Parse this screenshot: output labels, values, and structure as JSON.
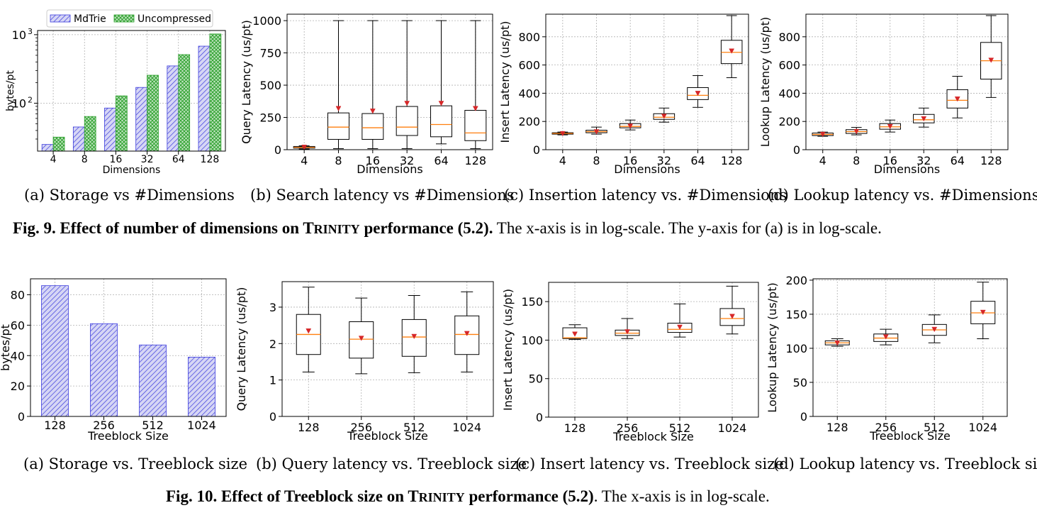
{
  "chart_data": [
    {
      "id": "fig9a",
      "type": "bar",
      "caption": "(a)  Storage vs #Dimensions",
      "xlabel": "Dimensions",
      "ylabel": "bytes/pt",
      "yscale": "log",
      "categories": [
        "4",
        "8",
        "16",
        "32",
        "64",
        "128"
      ],
      "series": [
        {
          "name": "MdTrie",
          "values": [
            25,
            45,
            85,
            170,
            350,
            680
          ],
          "color": "#3b3bdc"
        },
        {
          "name": "Uncompressed",
          "values": [
            32,
            64,
            128,
            256,
            512,
            1024
          ],
          "color": "#2ca02c"
        }
      ],
      "yticks": [
        {
          "v": 100,
          "base": "10",
          "exp": "2"
        },
        {
          "v": 1000,
          "base": "10",
          "exp": "3"
        }
      ],
      "ylim": [
        20,
        1150
      ],
      "legend": "top"
    },
    {
      "id": "fig9b",
      "type": "box",
      "caption": "(b)  Search latency vs #Dimensions",
      "xlabel": "Dimensions",
      "ylabel": "Query Latency (us/pt)",
      "categories": [
        "4",
        "8",
        "16",
        "32",
        "64",
        "128"
      ],
      "yticks": [
        "0",
        "250",
        "500",
        "750",
        "1000"
      ],
      "ylim": [
        0,
        1050
      ],
      "boxes": [
        {
          "min": 5,
          "q1": 12,
          "median": 18,
          "q3": 25,
          "max": 30,
          "mean": 20
        },
        {
          "min": 8,
          "q1": 80,
          "median": 175,
          "q3": 285,
          "max": 1000,
          "mean": 320
        },
        {
          "min": 8,
          "q1": 80,
          "median": 170,
          "q3": 280,
          "max": 1000,
          "mean": 300
        },
        {
          "min": 8,
          "q1": 110,
          "median": 175,
          "q3": 335,
          "max": 1000,
          "mean": 360
        },
        {
          "min": 45,
          "q1": 100,
          "median": 195,
          "q3": 340,
          "max": 1000,
          "mean": 360
        },
        {
          "min": 8,
          "q1": 70,
          "median": 130,
          "q3": 305,
          "max": 1000,
          "mean": 320
        }
      ]
    },
    {
      "id": "fig9c",
      "type": "box",
      "caption": "(c)  Insertion latency vs. #Dimensions",
      "xlabel": "Dimensions",
      "ylabel": "Insert Latency (us/pt)",
      "categories": [
        "4",
        "8",
        "16",
        "32",
        "64",
        "128"
      ],
      "yticks": [
        "0",
        "200",
        "400",
        "600",
        "800"
      ],
      "ylim": [
        0,
        960
      ],
      "boxes": [
        {
          "min": 105,
          "q1": 110,
          "median": 115,
          "q3": 120,
          "max": 125,
          "mean": 115
        },
        {
          "min": 110,
          "q1": 120,
          "median": 128,
          "q3": 138,
          "max": 160,
          "mean": 128
        },
        {
          "min": 140,
          "q1": 155,
          "median": 165,
          "q3": 185,
          "max": 210,
          "mean": 168
        },
        {
          "min": 195,
          "q1": 215,
          "median": 230,
          "q3": 255,
          "max": 295,
          "mean": 238
        },
        {
          "min": 300,
          "q1": 355,
          "median": 385,
          "q3": 440,
          "max": 525,
          "mean": 400
        },
        {
          "min": 510,
          "q1": 610,
          "median": 690,
          "q3": 775,
          "max": 950,
          "mean": 700
        }
      ]
    },
    {
      "id": "fig9d",
      "type": "box",
      "caption": "(d)  Lookup latency vs. #Dimensions",
      "xlabel": "Dimensions",
      "ylabel": "Lookup Latency (us/pt)",
      "categories": [
        "4",
        "8",
        "16",
        "32",
        "64",
        "128"
      ],
      "yticks": [
        "0",
        "200",
        "400",
        "600",
        "800"
      ],
      "ylim": [
        0,
        960
      ],
      "boxes": [
        {
          "min": 95,
          "q1": 100,
          "median": 108,
          "q3": 118,
          "max": 125,
          "mean": 110
        },
        {
          "min": 105,
          "q1": 115,
          "median": 128,
          "q3": 142,
          "max": 158,
          "mean": 130
        },
        {
          "min": 125,
          "q1": 145,
          "median": 162,
          "q3": 185,
          "max": 210,
          "mean": 165
        },
        {
          "min": 160,
          "q1": 190,
          "median": 212,
          "q3": 250,
          "max": 295,
          "mean": 220
        },
        {
          "min": 225,
          "q1": 295,
          "median": 350,
          "q3": 425,
          "max": 520,
          "mean": 360
        },
        {
          "min": 370,
          "q1": 500,
          "median": 630,
          "q3": 760,
          "max": 950,
          "mean": 635
        }
      ]
    },
    {
      "id": "fig10a",
      "type": "bar",
      "caption": "(a)  Storage vs. Treeblock size",
      "xlabel": "Treeblock Size",
      "ylabel": "bytes/pt",
      "categories": [
        "128",
        "256",
        "512",
        "1024"
      ],
      "series": [
        {
          "name": "MdTrie",
          "values": [
            86,
            61,
            47,
            39
          ],
          "color": "#3b3bdc"
        }
      ],
      "yticks": [
        "0",
        "20",
        "40",
        "60",
        "80"
      ],
      "ylim": [
        0,
        90.5
      ]
    },
    {
      "id": "fig10b",
      "type": "box",
      "caption": "(b)  Query latency vs. Treeblock size",
      "xlabel": "Treeblock Size",
      "ylabel": "Query Latency (us/pt)",
      "categories": [
        "128",
        "256",
        "512",
        "1024"
      ],
      "yticks": [
        "0",
        "1",
        "2",
        "3"
      ],
      "ylim": [
        0,
        3.7
      ],
      "boxes": [
        {
          "min": 1.22,
          "q1": 1.7,
          "median": 2.25,
          "q3": 2.8,
          "max": 3.55,
          "mean": 2.35
        },
        {
          "min": 1.17,
          "q1": 1.6,
          "median": 2.12,
          "q3": 2.6,
          "max": 3.25,
          "mean": 2.15
        },
        {
          "min": 1.2,
          "q1": 1.65,
          "median": 2.18,
          "q3": 2.66,
          "max": 3.32,
          "mean": 2.2
        },
        {
          "min": 1.22,
          "q1": 1.7,
          "median": 2.25,
          "q3": 2.76,
          "max": 3.42,
          "mean": 2.28
        }
      ]
    },
    {
      "id": "fig10c",
      "type": "box",
      "caption": "(c)  Insert latency vs. Treeblock size",
      "xlabel": "Treeblock Size",
      "ylabel": "Insert Latency (us/pt)",
      "categories": [
        "128",
        "256",
        "512",
        "1024"
      ],
      "yticks": [
        "0",
        "50",
        "100",
        "150"
      ],
      "ylim": [
        0,
        175
      ],
      "boxes": [
        {
          "min": 101,
          "q1": 102,
          "median": 103,
          "q3": 116,
          "max": 120,
          "mean": 108
        },
        {
          "min": 102,
          "q1": 106,
          "median": 109,
          "q3": 113,
          "max": 128,
          "mean": 111
        },
        {
          "min": 104,
          "q1": 110,
          "median": 114,
          "q3": 122,
          "max": 147,
          "mean": 117
        },
        {
          "min": 108,
          "q1": 119,
          "median": 128,
          "q3": 141,
          "max": 170,
          "mean": 131
        }
      ]
    },
    {
      "id": "fig10d",
      "type": "box",
      "caption": "(d)  Lookup latency vs. Treeblock size",
      "xlabel": "Treeblock Size",
      "ylabel": "Lookup Latency (us/pt)",
      "categories": [
        "128",
        "256",
        "512",
        "1024"
      ],
      "yticks": [
        "0",
        "50",
        "100",
        "150",
        "200"
      ],
      "ylim": [
        0,
        202
      ],
      "boxes": [
        {
          "min": 103,
          "q1": 105,
          "median": 108,
          "q3": 111,
          "max": 114,
          "mean": 108
        },
        {
          "min": 105,
          "q1": 110,
          "median": 115,
          "q3": 121,
          "max": 128,
          "mean": 117
        },
        {
          "min": 108,
          "q1": 119,
          "median": 127,
          "q3": 135,
          "max": 149,
          "mean": 128
        },
        {
          "min": 114,
          "q1": 136,
          "median": 152,
          "q3": 169,
          "max": 197,
          "mean": 153
        }
      ]
    }
  ],
  "figures": {
    "fig9": {
      "lead": "Fig. 9. Effect of number of dimensions on ",
      "name_first": "T",
      "name_rest": "RINITY",
      "tail_bold": " performance (5.2).",
      "tail": " The x-axis is in log-scale. The y-axis for (a) is in log-scale."
    },
    "fig10": {
      "lead": "Fig. 10. Effect of Treeblock size on ",
      "name_first": "T",
      "name_rest": "RINITY",
      "tail_bold": " performance (5.2)",
      "tail": ". The x-axis is in log-scale."
    }
  },
  "colors": {
    "box_median": "#ff7f0e",
    "box_mean": "#d62728",
    "grid": "#b0b0b0",
    "mdtrie_fill": "#c7c7ef",
    "uncompressed_fill": "#b4ddb4"
  }
}
